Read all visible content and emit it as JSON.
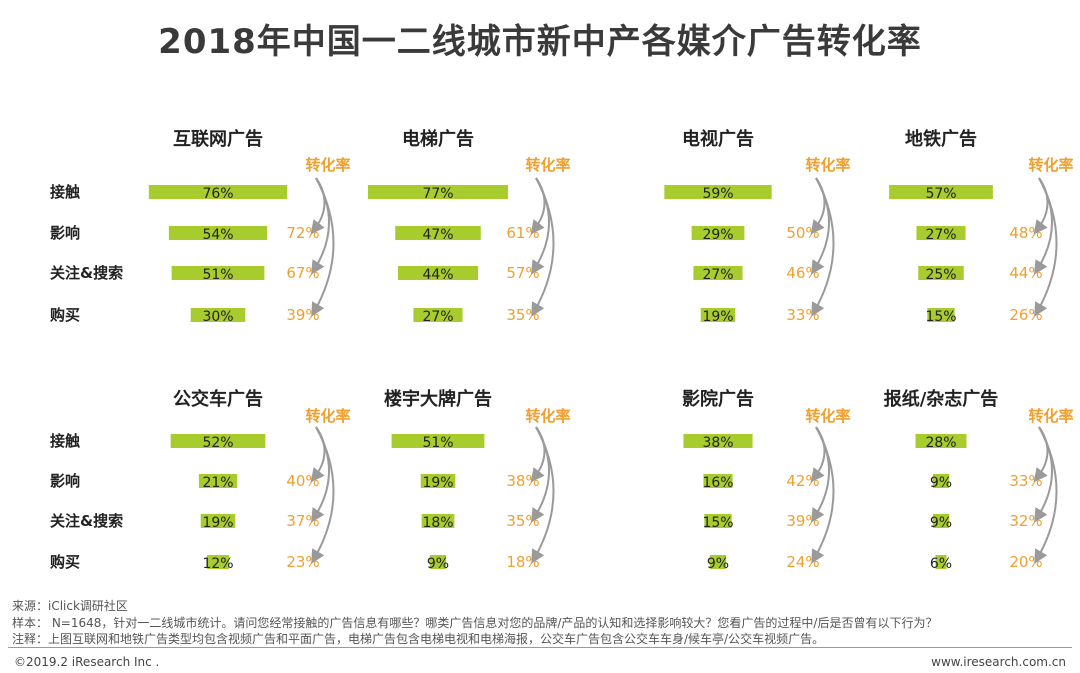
{
  "title": "2018年中国一二线城市新中产各媒介广告转化率",
  "conversion_label": "转化率",
  "chart_data": [
    {
      "type": "bar",
      "title": "互联网广告",
      "categories": [
        "接触",
        "影响",
        "关注&搜索",
        "购买"
      ],
      "values": [
        76,
        54,
        51,
        30
      ],
      "conversion": [
        72,
        67,
        39
      ]
    },
    {
      "type": "bar",
      "title": "电梯广告",
      "categories": [
        "接触",
        "影响",
        "关注&搜索",
        "购买"
      ],
      "values": [
        77,
        47,
        44,
        27
      ],
      "conversion": [
        61,
        57,
        35
      ]
    },
    {
      "type": "bar",
      "title": "电视广告",
      "categories": [
        "接触",
        "影响",
        "关注&搜索",
        "购买"
      ],
      "values": [
        59,
        29,
        27,
        19
      ],
      "conversion": [
        50,
        46,
        33
      ]
    },
    {
      "type": "bar",
      "title": "地铁广告",
      "categories": [
        "接触",
        "影响",
        "关注&搜索",
        "购买"
      ],
      "values": [
        57,
        27,
        25,
        15
      ],
      "conversion": [
        48,
        44,
        26
      ]
    },
    {
      "type": "bar",
      "title": "公交车广告",
      "categories": [
        "接触",
        "影响",
        "关注&搜索",
        "购买"
      ],
      "values": [
        52,
        21,
        19,
        12
      ],
      "conversion": [
        40,
        37,
        23
      ]
    },
    {
      "type": "bar",
      "title": "楼宇大牌广告",
      "categories": [
        "接触",
        "影响",
        "关注&搜索",
        "购买"
      ],
      "values": [
        51,
        19,
        18,
        9
      ],
      "conversion": [
        38,
        35,
        18
      ]
    },
    {
      "type": "bar",
      "title": "影院广告",
      "categories": [
        "接触",
        "影响",
        "关注&搜索",
        "购买"
      ],
      "values": [
        38,
        16,
        15,
        9
      ],
      "conversion": [
        42,
        39,
        24
      ]
    },
    {
      "type": "bar",
      "title": "报纸/杂志广告",
      "categories": [
        "接触",
        "影响",
        "关注&搜索",
        "购买"
      ],
      "values": [
        28,
        9,
        9,
        6
      ],
      "conversion": [
        33,
        32,
        20
      ]
    }
  ],
  "colors": {
    "bar": "#a8cc2e",
    "conversion_text": "#f0a030",
    "arrow": "#9a9a9a",
    "label": "#222222"
  },
  "footer": {
    "source": "来源：iClick调研社区",
    "sample": "样本： N=1648，针对一二线城市统计。请问您经常接触的广告信息有哪些？哪类广告信息对您的品牌/产品的认知和选择影响较大？您看广告的过程中/后是否曾有以下行为？",
    "note": "注释：上图互联网和地铁广告类型均包含视频广告和平面广告，电梯广告包含电梯电视和电梯海报，公交车广告包含公交车车身/候车亭/公交车视频广告。",
    "copyright": "©2019.2 iResearch Inc .",
    "website": "www.iresearch.com.cn"
  }
}
